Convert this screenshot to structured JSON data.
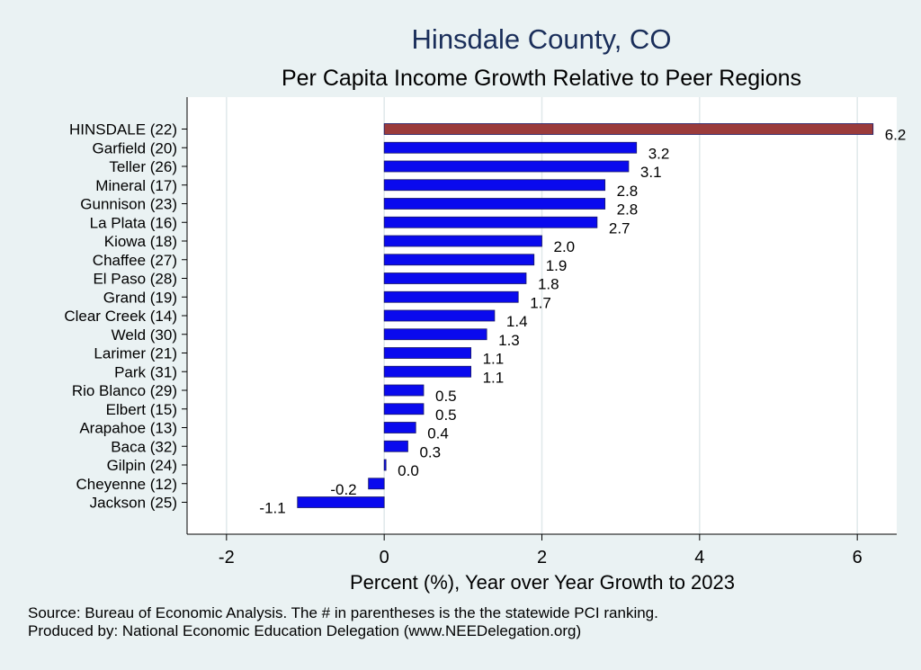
{
  "chart_data": {
    "type": "bar",
    "orientation": "horizontal",
    "title": "Hinsdale County, CO",
    "subtitle": "Per Capita Income Growth Relative to Peer Regions",
    "xlabel": "Percent (%), Year over Year Growth to 2023",
    "xlim": [
      -2.5,
      6.5
    ],
    "xticks": [
      -2,
      0,
      2,
      4,
      6
    ],
    "grid": true,
    "categories": [
      "HINSDALE (22)",
      "Garfield (20)",
      "Teller (26)",
      "Mineral (17)",
      "Gunnison (23)",
      "La Plata (16)",
      "Kiowa (18)",
      "Chaffee (27)",
      "El Paso (28)",
      "Grand (19)",
      "Clear Creek (14)",
      "Weld (30)",
      "Larimer (21)",
      "Park (31)",
      "Rio Blanco (29)",
      "Elbert (15)",
      "Arapahoe (13)",
      "Baca (32)",
      "Gilpin (24)",
      "Cheyenne (12)",
      "Jackson (25)"
    ],
    "values": [
      6.2,
      3.2,
      3.1,
      2.8,
      2.8,
      2.7,
      2.0,
      1.9,
      1.8,
      1.7,
      1.4,
      1.3,
      1.1,
      1.1,
      0.5,
      0.5,
      0.4,
      0.3,
      0.0,
      -0.2,
      -1.1
    ],
    "value_labels": [
      "6.2",
      "3.2",
      "3.1",
      "2.8",
      "2.8",
      "2.7",
      "2.0",
      "1.9",
      "1.8",
      "1.7",
      "1.4",
      "1.3",
      "1.1",
      "1.1",
      "0.5",
      "0.5",
      "0.4",
      "0.3",
      "0.0",
      "-0.2",
      "-1.1"
    ],
    "highlight_index": 0,
    "colors": {
      "highlight": "#9b3b3b",
      "bar": "#0a0aee",
      "bar_edge": "#1a1a66",
      "grid": "#e0e8ea",
      "plot_bg": "#ffffff"
    }
  },
  "footer": {
    "line1": "Source: Bureau of Economic Analysis. The # in parentheses is the the statewide PCI ranking.",
    "line2": "Produced by: National Economic Education Delegation (www.NEEDelegation.org)"
  }
}
